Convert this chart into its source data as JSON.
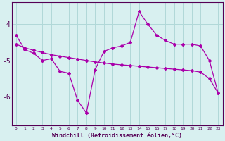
{
  "xlabel": "Windchill (Refroidissement éolien,°C)",
  "hours": [
    0,
    1,
    2,
    3,
    4,
    5,
    6,
    7,
    8,
    9,
    10,
    11,
    12,
    13,
    14,
    15,
    16,
    17,
    18,
    19,
    20,
    21,
    22,
    23
  ],
  "line_spiky": [
    -4.3,
    -4.7,
    -4.8,
    -5.0,
    -4.95,
    -5.3,
    -5.35,
    -6.1,
    -6.45,
    -5.25,
    -4.75,
    -4.65,
    -4.6,
    -4.5,
    -3.65,
    -4.0,
    -4.3,
    -4.45,
    -4.55,
    -4.55,
    -4.55,
    -4.6,
    -5.0,
    -5.9
  ],
  "line_smooth": [
    -4.55,
    -4.65,
    -4.72,
    -4.78,
    -4.84,
    -4.88,
    -4.92,
    -4.96,
    -5.0,
    -5.04,
    -5.07,
    -5.1,
    -5.12,
    -5.14,
    -5.16,
    -5.18,
    -5.2,
    -5.22,
    -5.24,
    -5.26,
    -5.28,
    -5.32,
    -5.5,
    -5.9
  ],
  "line_color": "#aa00aa",
  "bg_color": "#d8f0f0",
  "grid_color": "#b0d8d8",
  "yticks": [
    -4,
    -5,
    -6
  ],
  "ylim": [
    -6.8,
    -3.4
  ],
  "xlim": [
    -0.5,
    23.5
  ]
}
